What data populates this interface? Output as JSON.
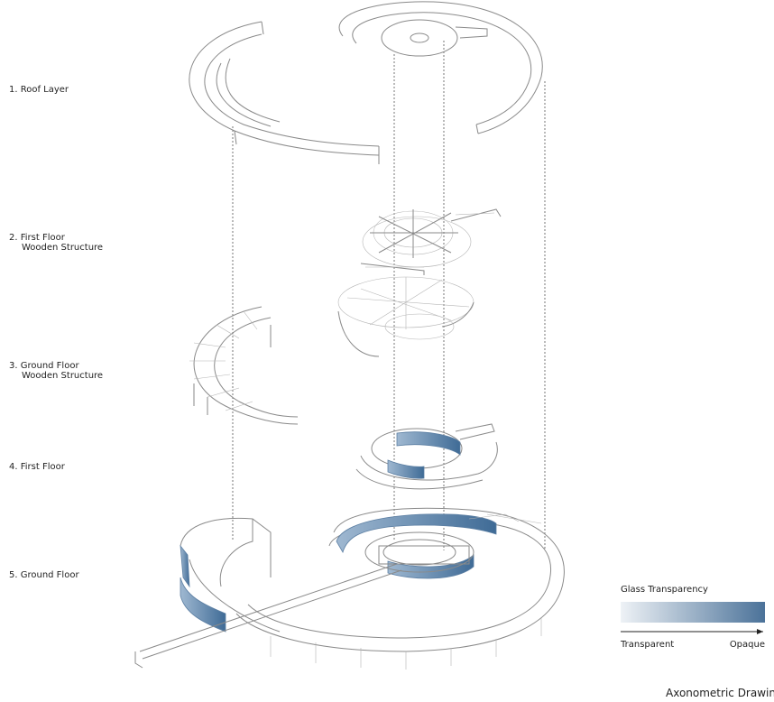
{
  "layers": [
    {
      "lines": [
        "1. Roof Layer"
      ]
    },
    {
      "lines": [
        "2. First Floor",
        "Wooden Structure"
      ]
    },
    {
      "lines": [
        "3. Ground Floor",
        "Wooden Structure"
      ]
    },
    {
      "lines": [
        "4. First Floor"
      ]
    },
    {
      "lines": [
        "5. Ground Floor"
      ]
    }
  ],
  "legend": {
    "title": "Glass Transparency",
    "left_label": "Transparent",
    "right_label": "Opaque"
  },
  "caption": "Axonometric Drawing"
}
